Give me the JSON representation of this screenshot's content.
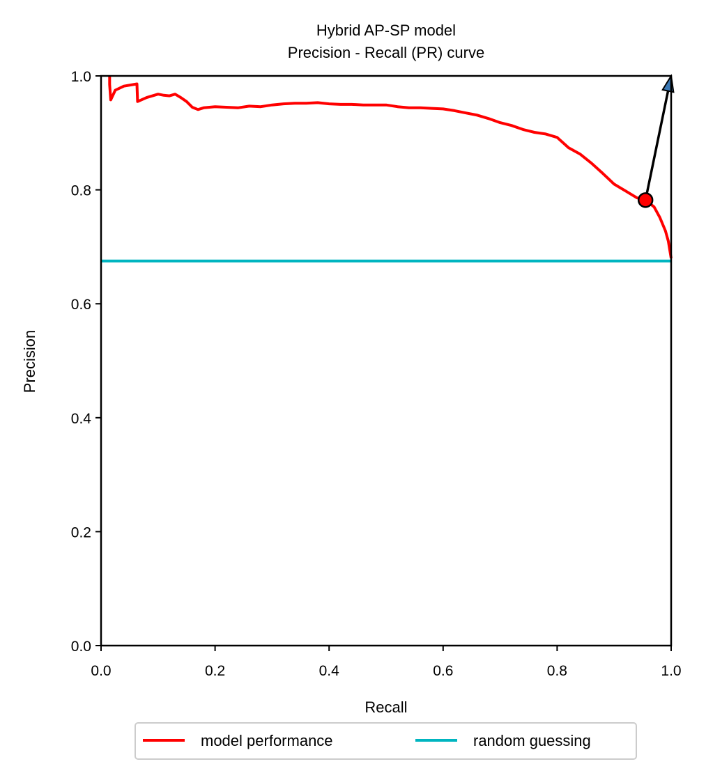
{
  "chart_data": {
    "type": "line",
    "title": "Hybrid AP-SP model",
    "subtitle": "Precision - Recall (PR) curve",
    "xlabel": "Recall",
    "ylabel": "Precision",
    "xlim": [
      0.0,
      1.0
    ],
    "ylim": [
      0.0,
      1.0
    ],
    "x_ticks": [
      "0.0",
      "0.2",
      "0.4",
      "0.6",
      "0.8",
      "1.0"
    ],
    "y_ticks": [
      "0.0",
      "0.2",
      "0.4",
      "0.6",
      "0.8",
      "1.0"
    ],
    "grid": false,
    "legend_position": "bottom-center",
    "series": [
      {
        "name": "model performance",
        "color": "#ff0000",
        "x": [
          0.015,
          0.015,
          0.017,
          0.025,
          0.04,
          0.063,
          0.064,
          0.08,
          0.1,
          0.11,
          0.12,
          0.13,
          0.14,
          0.15,
          0.16,
          0.17,
          0.18,
          0.2,
          0.22,
          0.24,
          0.26,
          0.28,
          0.3,
          0.32,
          0.34,
          0.36,
          0.38,
          0.4,
          0.42,
          0.44,
          0.46,
          0.48,
          0.5,
          0.52,
          0.54,
          0.56,
          0.58,
          0.6,
          0.62,
          0.64,
          0.66,
          0.68,
          0.7,
          0.72,
          0.74,
          0.76,
          0.78,
          0.8,
          0.82,
          0.84,
          0.86,
          0.88,
          0.9,
          0.92,
          0.94,
          0.955,
          0.97,
          0.98,
          0.99,
          0.995,
          1.0
        ],
        "y": [
          1.0,
          0.985,
          0.958,
          0.975,
          0.982,
          0.986,
          0.955,
          0.962,
          0.968,
          0.966,
          0.965,
          0.968,
          0.962,
          0.955,
          0.945,
          0.941,
          0.944,
          0.946,
          0.945,
          0.944,
          0.947,
          0.946,
          0.949,
          0.951,
          0.952,
          0.952,
          0.953,
          0.951,
          0.95,
          0.95,
          0.949,
          0.949,
          0.949,
          0.946,
          0.944,
          0.944,
          0.943,
          0.942,
          0.939,
          0.935,
          0.931,
          0.925,
          0.918,
          0.913,
          0.906,
          0.901,
          0.898,
          0.892,
          0.874,
          0.863,
          0.847,
          0.829,
          0.81,
          0.798,
          0.786,
          0.782,
          0.77,
          0.752,
          0.728,
          0.71,
          0.68
        ]
      },
      {
        "name": "random guessing",
        "color": "#00b5c0",
        "x": [
          0.0,
          1.0
        ],
        "y": [
          0.675,
          0.675
        ]
      }
    ],
    "annotations": [
      {
        "type": "point",
        "x": 0.955,
        "y": 0.782,
        "fill": "#ff0000",
        "edge": "#000000"
      },
      {
        "type": "arrow",
        "from": [
          0.955,
          0.782
        ],
        "to": [
          1.0,
          1.0
        ],
        "color": "#000000",
        "head_color": "#3a78b5"
      }
    ]
  }
}
